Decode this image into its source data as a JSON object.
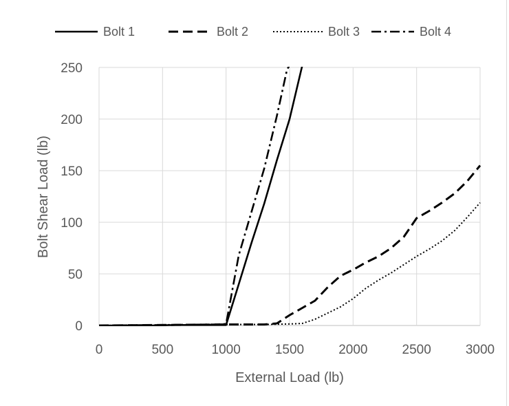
{
  "chart_data": {
    "type": "line",
    "title": "",
    "xlabel": "External Load (lb)",
    "ylabel": "Bolt Shear Load (lb)",
    "xlim": [
      0,
      3000
    ],
    "ylim": [
      0,
      250
    ],
    "x_ticks": [
      0,
      500,
      1000,
      1500,
      2000,
      2500,
      3000
    ],
    "y_ticks": [
      0,
      50,
      100,
      150,
      200,
      250
    ],
    "grid": true,
    "legend_position": "top",
    "series": [
      {
        "name": "Bolt 1",
        "line_style": "solid",
        "color": "#000000",
        "points": [
          [
            0,
            0
          ],
          [
            200,
            0
          ],
          [
            400,
            0
          ],
          [
            600,
            0.5
          ],
          [
            800,
            0.5
          ],
          [
            1000,
            0.5
          ],
          [
            1100,
            40
          ],
          [
            1200,
            80
          ],
          [
            1300,
            118
          ],
          [
            1400,
            160
          ],
          [
            1500,
            200
          ],
          [
            1600,
            252
          ]
        ]
      },
      {
        "name": "Bolt 2",
        "line_style": "dash",
        "color": "#000000",
        "points": [
          [
            0,
            0
          ],
          [
            500,
            0.5
          ],
          [
            1000,
            1
          ],
          [
            1300,
            1
          ],
          [
            1400,
            2
          ],
          [
            1500,
            10
          ],
          [
            1600,
            17
          ],
          [
            1700,
            24
          ],
          [
            1800,
            37
          ],
          [
            1900,
            48
          ],
          [
            2000,
            54
          ],
          [
            2100,
            61
          ],
          [
            2200,
            67
          ],
          [
            2300,
            75
          ],
          [
            2400,
            86
          ],
          [
            2500,
            104
          ],
          [
            2600,
            111
          ],
          [
            2700,
            119
          ],
          [
            2800,
            128
          ],
          [
            2900,
            140
          ],
          [
            3000,
            155
          ]
        ]
      },
      {
        "name": "Bolt 3",
        "line_style": "dot",
        "color": "#000000",
        "points": [
          [
            0,
            0
          ],
          [
            500,
            0.5
          ],
          [
            1000,
            1
          ],
          [
            1300,
            1
          ],
          [
            1500,
            1.5
          ],
          [
            1600,
            2
          ],
          [
            1700,
            6
          ],
          [
            1800,
            12
          ],
          [
            1900,
            18
          ],
          [
            2000,
            26
          ],
          [
            2100,
            36
          ],
          [
            2200,
            44
          ],
          [
            2300,
            51
          ],
          [
            2400,
            59
          ],
          [
            2500,
            67
          ],
          [
            2600,
            74
          ],
          [
            2700,
            82
          ],
          [
            2800,
            92
          ],
          [
            2900,
            105
          ],
          [
            3000,
            119
          ]
        ]
      },
      {
        "name": "Bolt 4",
        "line_style": "dashdot",
        "color": "#000000",
        "points": [
          [
            0,
            0
          ],
          [
            500,
            0.5
          ],
          [
            900,
            1
          ],
          [
            1000,
            1.5
          ],
          [
            1100,
            68
          ],
          [
            1200,
            110
          ],
          [
            1300,
            152
          ],
          [
            1400,
            203
          ],
          [
            1480,
            248
          ],
          [
            1500,
            252
          ]
        ]
      }
    ]
  }
}
